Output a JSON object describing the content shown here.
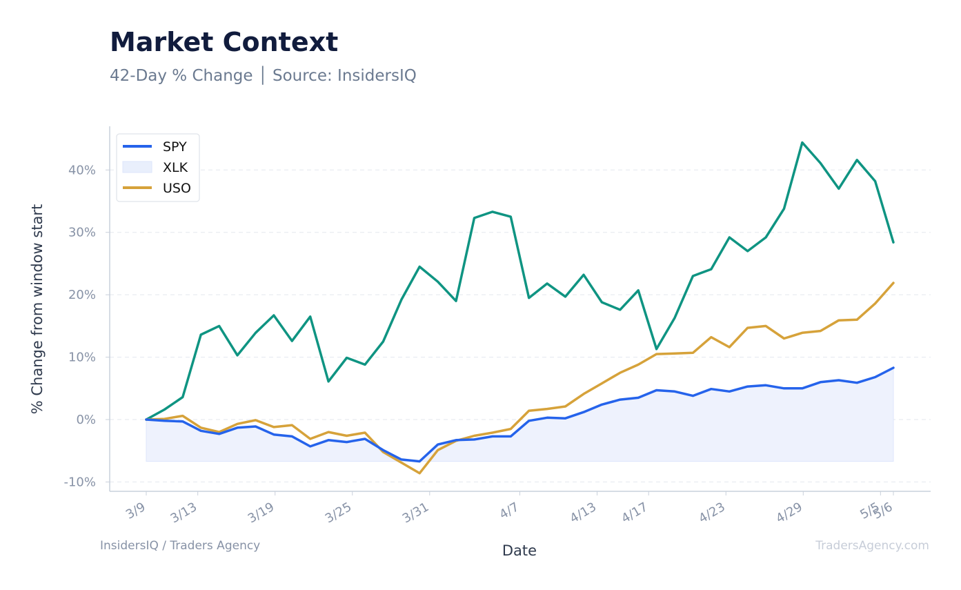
{
  "title": "Market Context",
  "subtitle": "42-Day % Change │ Source: InsidersIQ",
  "footer": {
    "left": "InsidersIQ / Traders Agency",
    "right": "TradersAgency.com"
  },
  "chart_data": {
    "type": "line",
    "xlabel": "Date",
    "ylabel": "% Change from window start",
    "ylim": [
      -11.5,
      47
    ],
    "yticks": [
      -10,
      0,
      10,
      20,
      30,
      40
    ],
    "ytick_labels": [
      "-10%",
      "0%",
      "10%",
      "20%",
      "30%",
      "40%"
    ],
    "grid": "horizontal dashed",
    "legend_position": "top-left",
    "x_dates": [
      "2025-03-09",
      "2025-03-10",
      "2025-03-11",
      "2025-03-12",
      "2025-03-13",
      "2025-03-14",
      "2025-03-15",
      "2025-03-16",
      "2025-03-17",
      "2025-03-18",
      "2025-03-19",
      "2025-03-20",
      "2025-03-21",
      "2025-03-22",
      "2025-03-23",
      "2025-03-24",
      "2025-03-25",
      "2025-03-26",
      "2025-03-27",
      "2025-03-28",
      "2025-03-29",
      "2025-03-30",
      "2025-03-31",
      "2025-04-01",
      "2025-04-02",
      "2025-04-03",
      "2025-04-04",
      "2025-04-05",
      "2025-04-06",
      "2025-04-07",
      "2025-04-08",
      "2025-04-09",
      "2025-04-10",
      "2025-04-11",
      "2025-04-12",
      "2025-04-13",
      "2025-04-14",
      "2025-04-15",
      "2025-04-16",
      "2025-04-17",
      "2025-04-18",
      "2025-04-19",
      "2025-04-20",
      "2025-04-21",
      "2025-04-22",
      "2025-04-23",
      "2025-04-24",
      "2025-04-25",
      "2025-04-26",
      "2025-04-27",
      "2025-04-28",
      "2025-04-29",
      "2025-04-30",
      "2025-05-01",
      "2025-05-02",
      "2025-05-03",
      "2025-05-04",
      "2025-05-05",
      "2025-05-06"
    ],
    "points": [
      {
        "date": "2025-03-09",
        "spy": 0.0,
        "xlk": 0.0,
        "uso": 0.0
      },
      {
        "date": "2025-03-10",
        "spy": -0.2,
        "xlk": 1.6,
        "uso": 0.1
      },
      {
        "date": "2025-03-11",
        "spy": -0.3,
        "xlk": 3.6,
        "uso": 0.6
      },
      {
        "date": "2025-03-12",
        "spy": -1.8,
        "xlk": 13.6,
        "uso": -1.3
      },
      {
        "date": "2025-03-13",
        "spy": -2.3,
        "xlk": 15.0,
        "uso": -2.0
      },
      {
        "date": "2025-03-14",
        "spy": -1.3,
        "xlk": 10.3,
        "uso": -0.7
      },
      {
        "date": "2025-03-15",
        "spy": -1.1,
        "xlk": 13.9,
        "uso": -0.1
      },
      {
        "date": "2025-03-16",
        "spy": -2.4,
        "xlk": 16.7,
        "uso": -1.2
      },
      {
        "date": "2025-03-17",
        "spy": -2.7,
        "xlk": 12.6,
        "uso": -0.9
      },
      {
        "date": "2025-03-18",
        "spy": -4.3,
        "xlk": 16.5,
        "uso": -3.1
      },
      {
        "date": "2025-03-19",
        "spy": -3.3,
        "xlk": 6.1,
        "uso": -2.0
      },
      {
        "date": "2025-03-20",
        "spy": -3.6,
        "xlk": 9.9,
        "uso": -2.6
      },
      {
        "date": "2025-03-21",
        "spy": -3.1,
        "xlk": 8.8,
        "uso": -2.1
      },
      {
        "date": "2025-03-22",
        "spy": -4.9,
        "xlk": 12.5,
        "uso": -5.2
      },
      {
        "date": "2025-03-23",
        "spy": -6.4,
        "xlk": 19.2,
        "uso": -6.9
      },
      {
        "date": "2025-03-24",
        "spy": -6.7,
        "xlk": 24.5,
        "uso": -8.6
      },
      {
        "date": "2025-03-25",
        "spy": -4.0,
        "xlk": 22.1,
        "uso": -4.9
      },
      {
        "date": "2025-03-26",
        "spy": -3.3,
        "xlk": 19.0,
        "uso": -3.4
      },
      {
        "date": "2025-03-27",
        "spy": -3.2,
        "xlk": 32.3,
        "uso": -2.6
      },
      {
        "date": "2025-03-28",
        "spy": -2.7,
        "xlk": 33.3,
        "uso": -2.1
      },
      {
        "date": "2025-03-29",
        "spy": -2.7,
        "xlk": 32.5,
        "uso": -1.5
      },
      {
        "date": "2025-03-30",
        "spy": -0.2,
        "xlk": 19.5,
        "uso": 1.4
      },
      {
        "date": "2025-03-31",
        "spy": 0.3,
        "xlk": 21.8,
        "uso": 1.7
      },
      {
        "date": "2025-04-01",
        "spy": 0.2,
        "xlk": 19.7,
        "uso": 2.1
      },
      {
        "date": "2025-04-02",
        "spy": 1.2,
        "xlk": 23.2,
        "uso": 4.1
      },
      {
        "date": "2025-04-03",
        "spy": 2.4,
        "xlk": 18.8,
        "uso": 5.8
      },
      {
        "date": "2025-04-04",
        "spy": 3.2,
        "xlk": 17.6,
        "uso": 7.5
      },
      {
        "date": "2025-04-05",
        "spy": 3.5,
        "xlk": 20.7,
        "uso": 8.8
      },
      {
        "date": "2025-04-06",
        "spy": 4.7,
        "xlk": 11.3,
        "uso": 10.5
      },
      {
        "date": "2025-04-07",
        "spy": 4.5,
        "xlk": 16.3,
        "uso": 10.6
      },
      {
        "date": "2025-04-08",
        "spy": 3.8,
        "xlk": 23.0,
        "uso": 10.7
      },
      {
        "date": "2025-04-09",
        "spy": 4.9,
        "xlk": 24.1,
        "uso": 13.2
      },
      {
        "date": "2025-04-10",
        "spy": 4.5,
        "xlk": 29.2,
        "uso": 11.6
      },
      {
        "date": "2025-04-11",
        "spy": 5.3,
        "xlk": 27.0,
        "uso": 14.7
      },
      {
        "date": "2025-04-12",
        "spy": 5.5,
        "xlk": 29.2,
        "uso": 15.0
      },
      {
        "date": "2025-04-13",
        "spy": 5.0,
        "xlk": 33.8,
        "uso": 13.0
      },
      {
        "date": "2025-04-14",
        "spy": 5.0,
        "xlk": 44.4,
        "uso": 13.9
      },
      {
        "date": "2025-04-15",
        "spy": 6.0,
        "xlk": 41.1,
        "uso": 14.2
      },
      {
        "date": "2025-04-16",
        "spy": 6.3,
        "xlk": 37.0,
        "uso": 15.9
      },
      {
        "date": "2025-04-17",
        "spy": 5.9,
        "xlk": 41.6,
        "uso": 16.0
      },
      {
        "date": "2025-04-18",
        "spy": 6.8,
        "xlk": 38.2,
        "uso": 18.6
      },
      {
        "date": "2025-04-19",
        "spy": 8.3,
        "xlk": 28.4,
        "uso": 21.9
      }
    ],
    "xtick_dates": [
      "2025-03-09",
      "2025-03-13",
      "2025-03-19",
      "2025-03-25",
      "2025-03-31",
      "2025-04-07",
      "2025-04-13",
      "2025-04-17",
      "2025-04-23",
      "2025-04-29",
      "2025-05-05",
      "2025-05-06"
    ],
    "xtick_labels": [
      "3/9",
      "3/13",
      "3/19",
      "3/25",
      "3/31",
      "4/7",
      "4/13",
      "4/17",
      "4/23",
      "4/29",
      "5/5",
      "5/6"
    ],
    "series": [
      {
        "name": "SPY",
        "key": "spy",
        "color": "#2563eb",
        "style": "line"
      },
      {
        "name": "XLK",
        "key": "xlk",
        "color": "#0f9482",
        "style": "line",
        "legend_swatch": "area",
        "legend_color": "#e9effc"
      },
      {
        "name": "USO",
        "key": "uso",
        "color": "#d6a23a",
        "style": "line"
      }
    ],
    "spy_fill": {
      "color": "#eef2fd",
      "stroke": "#dde5fb"
    }
  }
}
